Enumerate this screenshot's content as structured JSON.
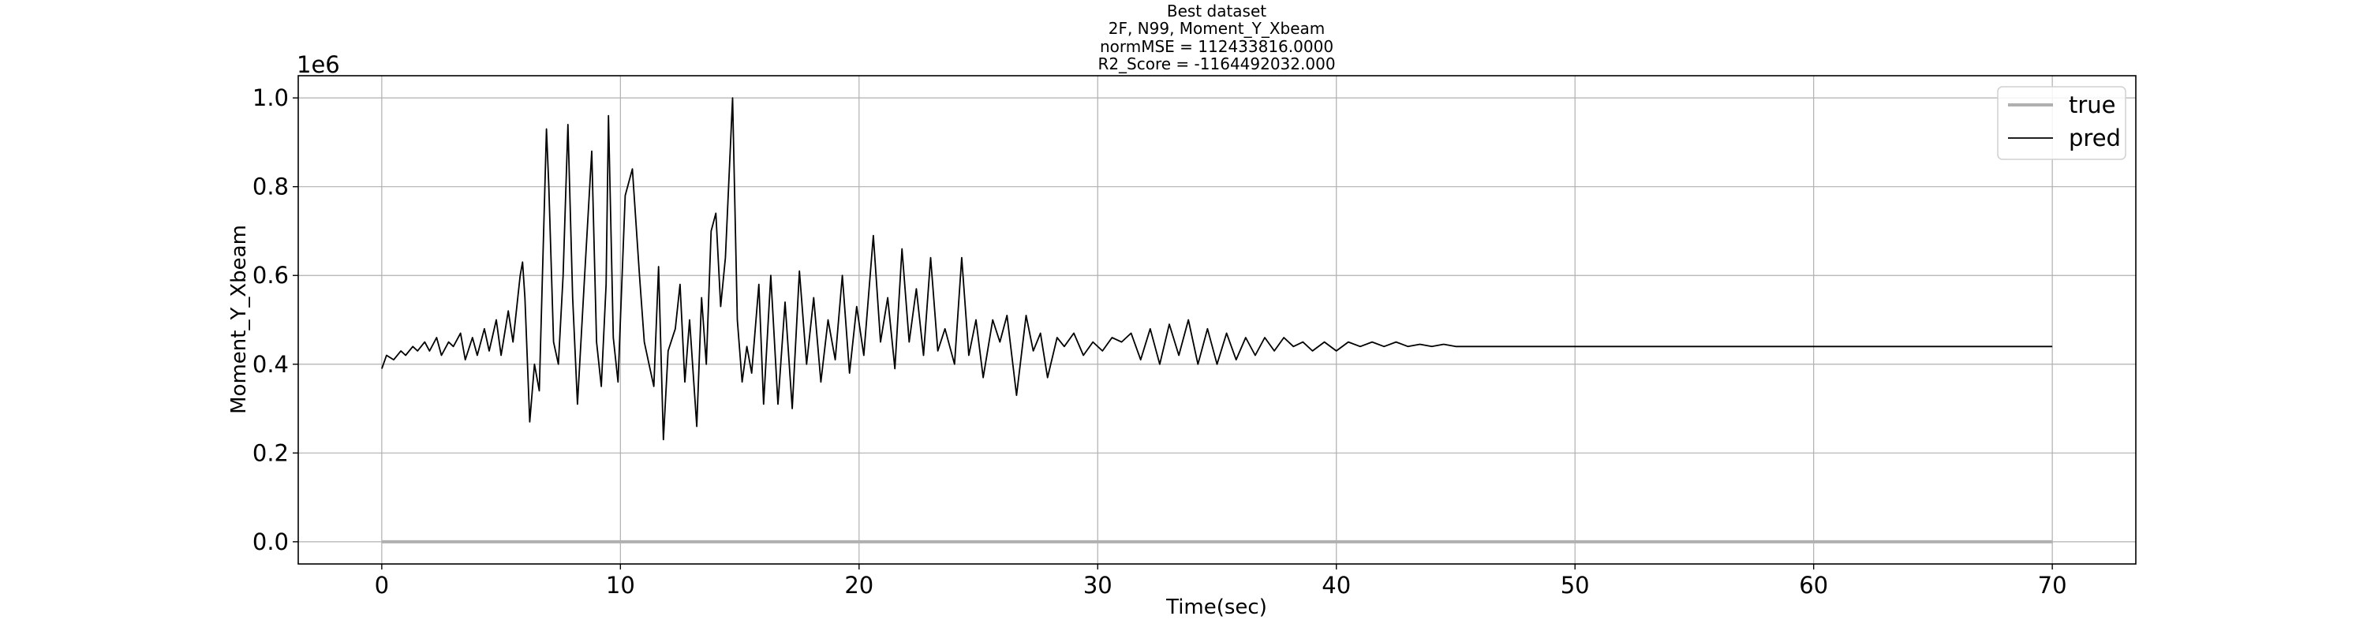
{
  "chart_data": {
    "type": "line",
    "title_lines": [
      "Best dataset",
      "2F, N99, Moment_Y_Xbeam",
      "normMSE = 112433816.0000",
      "R2_Score = -1164492032.000"
    ],
    "xlabel": "Time(sec)",
    "ylabel": "Moment_Y_Xbeam",
    "y_offset_label": "1e6",
    "xlim": [
      -3.5,
      73.5
    ],
    "ylim": [
      -0.05,
      1.05
    ],
    "y_scale": 1000000,
    "x_ticks": [
      0,
      10,
      20,
      30,
      40,
      50,
      60,
      70
    ],
    "y_ticks": [
      0.0,
      0.2,
      0.4,
      0.6,
      0.8,
      1.0
    ],
    "grid": true,
    "legend_position": "top-right",
    "series": [
      {
        "name": "true",
        "color": "#b0b0b0",
        "points": [
          [
            0,
            0.0
          ],
          [
            70,
            0.0
          ]
        ]
      },
      {
        "name": "pred",
        "color": "#000000",
        "points": [
          [
            0.0,
            0.39
          ],
          [
            0.2,
            0.42
          ],
          [
            0.5,
            0.41
          ],
          [
            0.8,
            0.43
          ],
          [
            1.0,
            0.42
          ],
          [
            1.3,
            0.44
          ],
          [
            1.5,
            0.43
          ],
          [
            1.8,
            0.45
          ],
          [
            2.0,
            0.43
          ],
          [
            2.3,
            0.46
          ],
          [
            2.5,
            0.42
          ],
          [
            2.8,
            0.45
          ],
          [
            3.0,
            0.44
          ],
          [
            3.3,
            0.47
          ],
          [
            3.5,
            0.41
          ],
          [
            3.8,
            0.46
          ],
          [
            4.0,
            0.42
          ],
          [
            4.3,
            0.48
          ],
          [
            4.5,
            0.43
          ],
          [
            4.8,
            0.5
          ],
          [
            5.0,
            0.42
          ],
          [
            5.3,
            0.52
          ],
          [
            5.5,
            0.45
          ],
          [
            5.8,
            0.6
          ],
          [
            5.9,
            0.63
          ],
          [
            6.0,
            0.55
          ],
          [
            6.2,
            0.27
          ],
          [
            6.4,
            0.4
          ],
          [
            6.6,
            0.34
          ],
          [
            6.9,
            0.93
          ],
          [
            7.0,
            0.8
          ],
          [
            7.2,
            0.45
          ],
          [
            7.4,
            0.4
          ],
          [
            7.6,
            0.6
          ],
          [
            7.8,
            0.94
          ],
          [
            8.0,
            0.55
          ],
          [
            8.2,
            0.31
          ],
          [
            8.5,
            0.6
          ],
          [
            8.8,
            0.88
          ],
          [
            9.0,
            0.45
          ],
          [
            9.2,
            0.35
          ],
          [
            9.4,
            0.58
          ],
          [
            9.5,
            0.96
          ],
          [
            9.7,
            0.46
          ],
          [
            9.9,
            0.36
          ],
          [
            10.2,
            0.78
          ],
          [
            10.5,
            0.84
          ],
          [
            10.8,
            0.6
          ],
          [
            11.0,
            0.45
          ],
          [
            11.2,
            0.4
          ],
          [
            11.4,
            0.35
          ],
          [
            11.6,
            0.62
          ],
          [
            11.8,
            0.23
          ],
          [
            12.0,
            0.43
          ],
          [
            12.3,
            0.48
          ],
          [
            12.5,
            0.58
          ],
          [
            12.7,
            0.36
          ],
          [
            12.9,
            0.5
          ],
          [
            13.2,
            0.26
          ],
          [
            13.4,
            0.55
          ],
          [
            13.6,
            0.4
          ],
          [
            13.8,
            0.7
          ],
          [
            14.0,
            0.74
          ],
          [
            14.2,
            0.53
          ],
          [
            14.4,
            0.64
          ],
          [
            14.7,
            1.0
          ],
          [
            14.9,
            0.5
          ],
          [
            15.1,
            0.36
          ],
          [
            15.3,
            0.44
          ],
          [
            15.5,
            0.38
          ],
          [
            15.8,
            0.58
          ],
          [
            16.0,
            0.31
          ],
          [
            16.3,
            0.6
          ],
          [
            16.6,
            0.31
          ],
          [
            16.9,
            0.54
          ],
          [
            17.2,
            0.3
          ],
          [
            17.5,
            0.61
          ],
          [
            17.8,
            0.4
          ],
          [
            18.1,
            0.55
          ],
          [
            18.4,
            0.36
          ],
          [
            18.7,
            0.5
          ],
          [
            19.0,
            0.41
          ],
          [
            19.3,
            0.6
          ],
          [
            19.6,
            0.38
          ],
          [
            19.9,
            0.53
          ],
          [
            20.2,
            0.42
          ],
          [
            20.6,
            0.69
          ],
          [
            20.9,
            0.45
          ],
          [
            21.2,
            0.55
          ],
          [
            21.5,
            0.39
          ],
          [
            21.8,
            0.66
          ],
          [
            22.1,
            0.45
          ],
          [
            22.4,
            0.57
          ],
          [
            22.7,
            0.42
          ],
          [
            23.0,
            0.64
          ],
          [
            23.3,
            0.43
          ],
          [
            23.6,
            0.48
          ],
          [
            24.0,
            0.4
          ],
          [
            24.3,
            0.64
          ],
          [
            24.6,
            0.42
          ],
          [
            24.9,
            0.5
          ],
          [
            25.2,
            0.37
          ],
          [
            25.6,
            0.5
          ],
          [
            25.9,
            0.45
          ],
          [
            26.2,
            0.51
          ],
          [
            26.6,
            0.33
          ],
          [
            27.0,
            0.51
          ],
          [
            27.3,
            0.43
          ],
          [
            27.6,
            0.47
          ],
          [
            27.9,
            0.37
          ],
          [
            28.3,
            0.46
          ],
          [
            28.6,
            0.44
          ],
          [
            29.0,
            0.47
          ],
          [
            29.4,
            0.42
          ],
          [
            29.8,
            0.45
          ],
          [
            30.2,
            0.43
          ],
          [
            30.6,
            0.46
          ],
          [
            31.0,
            0.45
          ],
          [
            31.4,
            0.47
          ],
          [
            31.8,
            0.41
          ],
          [
            32.2,
            0.48
          ],
          [
            32.6,
            0.4
          ],
          [
            33.0,
            0.49
          ],
          [
            33.4,
            0.42
          ],
          [
            33.8,
            0.5
          ],
          [
            34.2,
            0.4
          ],
          [
            34.6,
            0.48
          ],
          [
            35.0,
            0.4
          ],
          [
            35.4,
            0.47
          ],
          [
            35.8,
            0.41
          ],
          [
            36.2,
            0.46
          ],
          [
            36.6,
            0.42
          ],
          [
            37.0,
            0.46
          ],
          [
            37.4,
            0.43
          ],
          [
            37.8,
            0.46
          ],
          [
            38.2,
            0.44
          ],
          [
            38.6,
            0.45
          ],
          [
            39.0,
            0.43
          ],
          [
            39.5,
            0.45
          ],
          [
            40.0,
            0.43
          ],
          [
            40.5,
            0.45
          ],
          [
            41.0,
            0.44
          ],
          [
            41.5,
            0.45
          ],
          [
            42.0,
            0.44
          ],
          [
            42.5,
            0.45
          ],
          [
            43.0,
            0.44
          ],
          [
            43.5,
            0.445
          ],
          [
            44.0,
            0.44
          ],
          [
            44.5,
            0.445
          ],
          [
            45.0,
            0.44
          ],
          [
            46.0,
            0.44
          ],
          [
            47.0,
            0.44
          ],
          [
            48.0,
            0.44
          ],
          [
            50.0,
            0.44
          ],
          [
            55.0,
            0.44
          ],
          [
            60.0,
            0.44
          ],
          [
            65.0,
            0.44
          ],
          [
            70.0,
            0.44
          ]
        ]
      }
    ]
  }
}
